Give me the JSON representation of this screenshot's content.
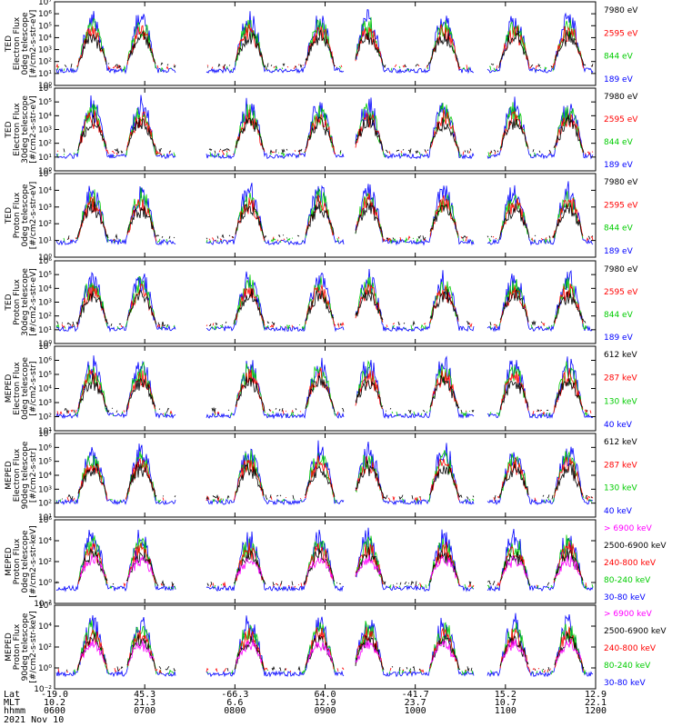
{
  "chart_data": {
    "type": "line",
    "xlim": [
      0,
      1
    ],
    "bottom_rows": [
      {
        "label": "Lat",
        "values": [
          "-19.0",
          "45.3",
          "-66.3",
          "64.0",
          "-41.7",
          "15.2",
          "12.9"
        ]
      },
      {
        "label": "MLT",
        "values": [
          "10.2",
          "21.3",
          "6.6",
          "12.9",
          "23.7",
          "10.7",
          "22.1"
        ]
      },
      {
        "label": "hhmm",
        "values": [
          "0600",
          "0700",
          "0800",
          "0900",
          "1000",
          "1100",
          "1200"
        ]
      }
    ],
    "date_label": "2021 Nov 10",
    "panels": [
      {
        "ylabel": [
          "TED",
          "Electron Flux",
          "0deg telescope",
          "[#/cm2-s-str-eV]"
        ],
        "yticks": [
          "10⁰",
          "10¹",
          "10²",
          "10³",
          "10⁴",
          "10⁵",
          "10⁶",
          "10⁷"
        ],
        "ylog": [
          0,
          7
        ],
        "legend": [
          {
            "name": "7980 eV",
            "color": "#000000"
          },
          {
            "name": "2595 eV",
            "color": "#ff0000"
          },
          {
            "name": "844 eV",
            "color": "#00cc00"
          },
          {
            "name": "189 eV",
            "color": "#0000ff"
          }
        ]
      },
      {
        "ylabel": [
          "TED",
          "Electron Flux",
          "30deg telescope",
          "[#/cm2-s-str-eV]"
        ],
        "yticks": [
          "10⁰",
          "10¹",
          "10²",
          "10³",
          "10⁴",
          "10⁵",
          "10⁶"
        ],
        "ylog": [
          0,
          6
        ],
        "legend": [
          {
            "name": "7980 eV",
            "color": "#000000"
          },
          {
            "name": "2595 eV",
            "color": "#ff0000"
          },
          {
            "name": "844 eV",
            "color": "#00cc00"
          },
          {
            "name": "189 eV",
            "color": "#0000ff"
          }
        ]
      },
      {
        "ylabel": [
          "TED",
          "Proton Flux",
          "0deg telescope",
          "[#/cm2-s-str-eV]"
        ],
        "yticks": [
          "10⁰",
          "10¹",
          "10²",
          "10³",
          "10⁴",
          "10⁵"
        ],
        "ylog": [
          0,
          5
        ],
        "legend": [
          {
            "name": "7980 eV",
            "color": "#000000"
          },
          {
            "name": "2595 eV",
            "color": "#ff0000"
          },
          {
            "name": "844 eV",
            "color": "#00cc00"
          },
          {
            "name": "189 eV",
            "color": "#0000ff"
          }
        ]
      },
      {
        "ylabel": [
          "TED",
          "Proton Flux",
          "30deg telescope",
          "[#/cm2-s-str-eV]"
        ],
        "yticks": [
          "10⁰",
          "10¹",
          "10²",
          "10³",
          "10⁴",
          "10⁵",
          "10⁶"
        ],
        "ylog": [
          0,
          6
        ],
        "legend": [
          {
            "name": "7980 eV",
            "color": "#000000"
          },
          {
            "name": "2595 eV",
            "color": "#ff0000"
          },
          {
            "name": "844 eV",
            "color": "#00cc00"
          },
          {
            "name": "189 eV",
            "color": "#0000ff"
          }
        ]
      },
      {
        "ylabel": [
          "MEPED",
          "Electron Flux",
          "0deg telescope",
          "[#/cm2-s-str]"
        ],
        "yticks": [
          "10¹",
          "10²",
          "10³",
          "10⁴",
          "10⁵",
          "10⁶",
          "10⁷"
        ],
        "ylog": [
          1,
          7
        ],
        "legend": [
          {
            "name": "612 keV",
            "color": "#000000"
          },
          {
            "name": "287 keV",
            "color": "#ff0000"
          },
          {
            "name": "130 keV",
            "color": "#00cc00"
          },
          {
            "name": "40 keV",
            "color": "#0000ff"
          }
        ]
      },
      {
        "ylabel": [
          "MEPED",
          "Electron Flux",
          "90deg telescope",
          "[#/cm2-s-str]"
        ],
        "yticks": [
          "10¹",
          "10²",
          "10³",
          "10⁴",
          "10⁵",
          "10⁶",
          "10⁷"
        ],
        "ylog": [
          1,
          7
        ],
        "legend": [
          {
            "name": "612 keV",
            "color": "#000000"
          },
          {
            "name": "287 keV",
            "color": "#ff0000"
          },
          {
            "name": "130 keV",
            "color": "#00cc00"
          },
          {
            "name": "40 keV",
            "color": "#0000ff"
          }
        ]
      },
      {
        "ylabel": [
          "MEPED",
          "Proton Flux",
          "0deg telescope",
          "[#/cm2-s-str-keV]"
        ],
        "yticks": [
          "10⁻²",
          "10⁰",
          "10²",
          "10⁴",
          "10⁶"
        ],
        "ylog": [
          -3,
          6
        ],
        "legend": [
          {
            "name": "> 6900 keV",
            "color": "#ff00ff"
          },
          {
            "name": "2500-6900 keV",
            "color": "#000000"
          },
          {
            "name": "240-800 keV",
            "color": "#ff0000"
          },
          {
            "name": "80-240 keV",
            "color": "#00cc00"
          },
          {
            "name": "30-80 keV",
            "color": "#0000ff"
          }
        ]
      },
      {
        "ylabel": [
          "MEPED",
          "Proton Flux",
          "90deg telescope",
          "[#/cm2-s-str-keV]"
        ],
        "yticks": [
          "10⁻²",
          "10⁰",
          "10²",
          "10⁴",
          "10⁶"
        ],
        "ylog": [
          -3,
          6
        ],
        "legend": [
          {
            "name": "> 6900 keV",
            "color": "#ff00ff"
          },
          {
            "name": "2500-6900 keV",
            "color": "#000000"
          },
          {
            "name": "240-800 keV",
            "color": "#ff0000"
          },
          {
            "name": "80-240 keV",
            "color": "#00cc00"
          },
          {
            "name": "30-80 keV",
            "color": "#0000ff"
          }
        ]
      }
    ]
  }
}
